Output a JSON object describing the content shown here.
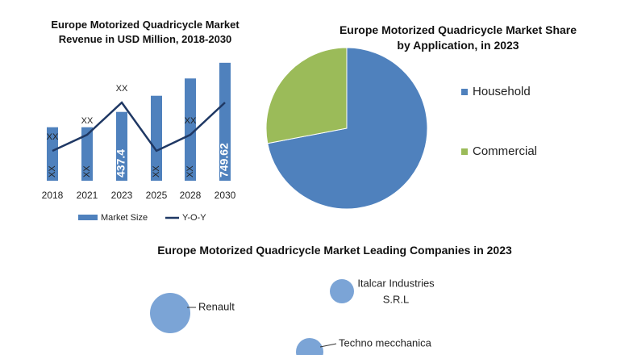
{
  "chart_data": [
    {
      "type": "bar",
      "title": "Europe Motorized Quadricycle Market Revenue in USD Million, 2018-2030",
      "categories": [
        "2018",
        "2021",
        "2023",
        "2025",
        "2028",
        "2030"
      ],
      "ylim": [
        0,
        800
      ],
      "series": [
        {
          "name": "Market Size",
          "type": "bar",
          "color": "#4f81bd",
          "values": [
            340,
            340,
            437.4,
            540,
            650,
            749.62
          ],
          "value_labels": [
            "XX",
            "XX",
            "437.4",
            "XX",
            "XX",
            "749.62"
          ]
        },
        {
          "name": "Y-O-Y",
          "type": "line",
          "color": "#1f3864",
          "values": [
            190,
            292,
            497,
            190,
            292,
            497
          ],
          "value_labels": [
            "XX",
            "XX",
            "XX",
            null,
            "XX",
            null
          ]
        }
      ]
    },
    {
      "type": "pie",
      "title": "Europe Motorized Quadricycle Market Share by Application, in 2023",
      "categories": [
        "Household",
        "Commercial"
      ],
      "values": [
        72,
        28
      ],
      "colors": [
        "#4f81bd",
        "#9bbb59"
      ]
    },
    {
      "type": "bubble",
      "title": "Europe Motorized Quadricycle Market Leading Companies in 2023",
      "categories": [
        [
          "Renault"
        ],
        [
          "Italcar Industries",
          "S.R.L"
        ],
        [
          "Techno mecchanica"
        ]
      ],
      "color": "#7ba4d6"
    }
  ]
}
